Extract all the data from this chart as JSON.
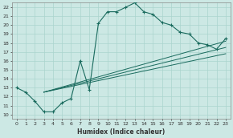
{
  "xlabel": "Humidex (Indice chaleur)",
  "bg_color": "#cce8e4",
  "line_color": "#1a6b5e",
  "grid_color": "#aad4ce",
  "xlim": [
    -0.5,
    23.5
  ],
  "ylim": [
    9.5,
    22.5
  ],
  "xticks": [
    0,
    1,
    2,
    3,
    4,
    5,
    6,
    7,
    8,
    9,
    10,
    11,
    12,
    13,
    14,
    15,
    16,
    17,
    18,
    19,
    20,
    21,
    22,
    23
  ],
  "yticks": [
    10,
    11,
    12,
    13,
    14,
    15,
    16,
    17,
    18,
    19,
    20,
    21,
    22
  ],
  "curve1_x": [
    0,
    1,
    2,
    3,
    4,
    5,
    6,
    7,
    8,
    9,
    10,
    11,
    12,
    13,
    14,
    15,
    16,
    17,
    18,
    19,
    20,
    21,
    22,
    23
  ],
  "curve1_y": [
    13,
    12.5,
    11.5,
    10.3,
    10.3,
    11.3,
    11.8,
    16,
    12.8,
    20.2,
    21.5,
    21.5,
    22.0,
    22.5,
    21.5,
    21.2,
    20.3,
    20.0,
    19.2,
    19.0,
    18.0,
    17.8,
    17.3,
    18.5
  ],
  "line1_x": [
    3,
    23
  ],
  "line1_y": [
    12.5,
    18.2
  ],
  "line2_x": [
    3,
    23
  ],
  "line2_y": [
    12.5,
    17.5
  ],
  "line3_x": [
    3,
    23
  ],
  "line3_y": [
    12.5,
    16.8
  ]
}
